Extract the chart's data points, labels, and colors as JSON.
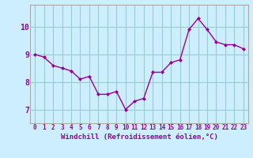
{
  "x": [
    0,
    1,
    2,
    3,
    4,
    5,
    6,
    7,
    8,
    9,
    10,
    11,
    12,
    13,
    14,
    15,
    16,
    17,
    18,
    19,
    20,
    21,
    22,
    23
  ],
  "y": [
    9.0,
    8.9,
    8.6,
    8.5,
    8.4,
    8.1,
    8.2,
    7.55,
    7.55,
    7.65,
    7.0,
    7.3,
    7.4,
    8.35,
    8.35,
    8.7,
    8.8,
    9.9,
    10.3,
    9.9,
    9.45,
    9.35,
    9.35,
    9.2
  ],
  "line_color": "#990099",
  "marker": "D",
  "marker_size": 2.0,
  "bg_color": "#cceeff",
  "grid_color": "#99cccc",
  "xlabel": "Windchill (Refroidissement éolien,°C)",
  "xlabel_fontsize": 6.5,
  "ylim": [
    6.5,
    10.8
  ],
  "yticks": [
    7,
    8,
    9,
    10
  ],
  "xticks": [
    0,
    1,
    2,
    3,
    4,
    5,
    6,
    7,
    8,
    9,
    10,
    11,
    12,
    13,
    14,
    15,
    16,
    17,
    18,
    19,
    20,
    21,
    22,
    23
  ],
  "tick_fontsize": 5.5,
  "ytick_fontsize": 7,
  "line_width": 1.0
}
